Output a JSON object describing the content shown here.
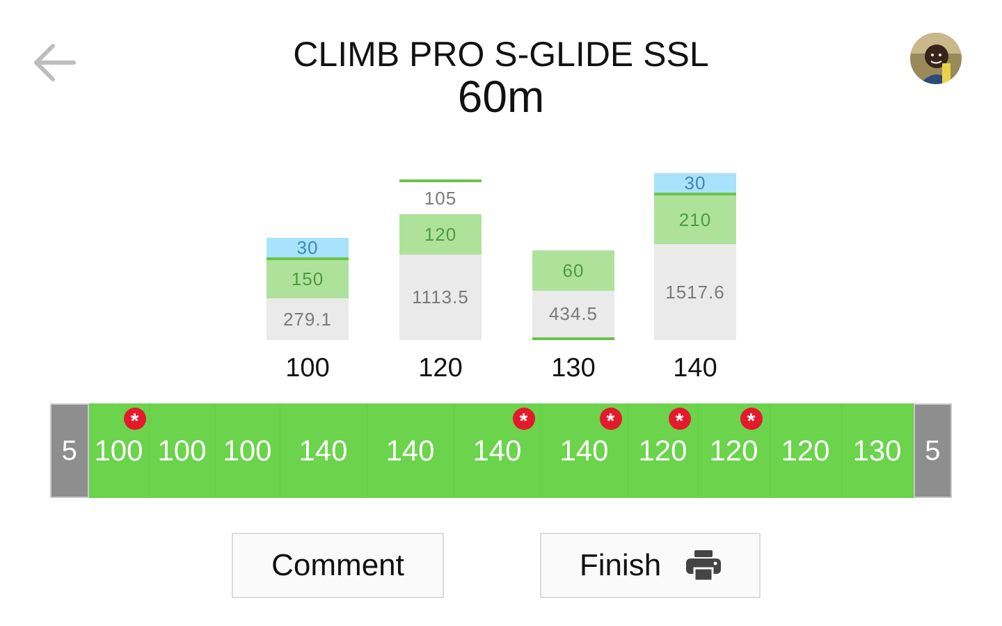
{
  "header": {
    "title": "CLIMB PRO S-GLIDE SSL",
    "subtitle": "60m"
  },
  "icons": {
    "back": "arrow-left-icon",
    "avatar": "user-avatar",
    "print": "printer-icon"
  },
  "colors": {
    "green": "#6bd34c",
    "light_green": "#aee29b",
    "light_blue": "#a9e2fb",
    "grey": "#eaeaea",
    "end_grey": "#8e8e8e",
    "marker_red": "#e5192c"
  },
  "chart_data": {
    "type": "bar",
    "categories": [
      "100",
      "120",
      "130",
      "140"
    ],
    "stacks": [
      {
        "category": "100",
        "base": "279.1",
        "green": "150",
        "blue": "30"
      },
      {
        "category": "120",
        "base": "1113.5",
        "green": "120",
        "extra": "105"
      },
      {
        "category": "130",
        "base": "434.5",
        "green": "60"
      },
      {
        "category": "140",
        "base": "1517.6",
        "green": "210",
        "blue": "30"
      }
    ]
  },
  "strip": {
    "left_end": "5",
    "right_end": "5",
    "cells": [
      {
        "value": "100",
        "marked": true
      },
      {
        "value": "100",
        "marked": false
      },
      {
        "value": "100",
        "marked": false
      },
      {
        "value": "140",
        "marked": false
      },
      {
        "value": "140",
        "marked": false
      },
      {
        "value": "140",
        "marked": true
      },
      {
        "value": "140",
        "marked": true
      },
      {
        "value": "120",
        "marked": true
      },
      {
        "value": "120",
        "marked": true
      },
      {
        "value": "120",
        "marked": false
      },
      {
        "value": "130",
        "marked": false
      }
    ],
    "marker_symbol": "*"
  },
  "actions": {
    "comment_label": "Comment",
    "finish_label": "Finish"
  }
}
